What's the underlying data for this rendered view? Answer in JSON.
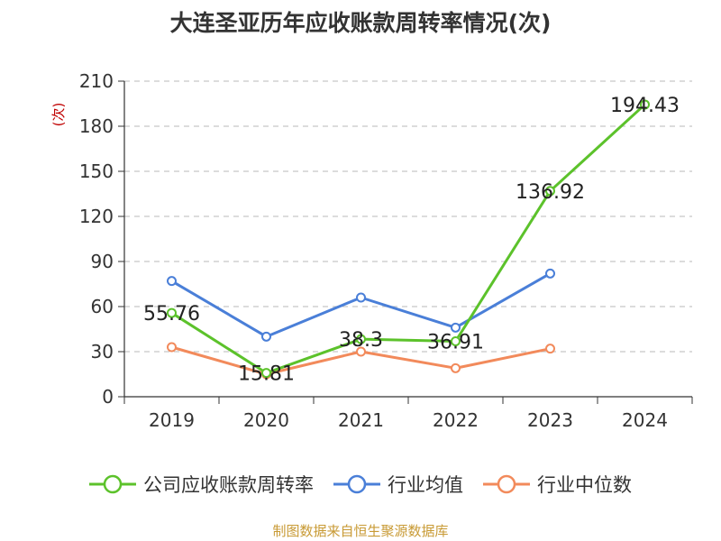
{
  "source": "制图数据来自恒生聚源数据库",
  "chart_data": {
    "type": "line",
    "title": "大连圣亚历年应收账款周转率情况(次)",
    "ylabel": "(次)",
    "xlabel": "",
    "categories": [
      "2019",
      "2020",
      "2021",
      "2022",
      "2023",
      "2024"
    ],
    "ylim": [
      0,
      210
    ],
    "yticks": [
      "0",
      "30",
      "60",
      "90",
      "120",
      "150",
      "180",
      "210"
    ],
    "grid": true,
    "legend_position": "bottom",
    "series": [
      {
        "name": "公司应收账款周转率",
        "color": "#5cc22b",
        "values": [
          55.76,
          15.81,
          38.3,
          36.91,
          136.92,
          194.43
        ],
        "labels": [
          "55.76",
          "15.81",
          "38.3",
          "36.91",
          "136.92",
          "194.43"
        ]
      },
      {
        "name": "行业均值",
        "color": "#4a7fd8",
        "values": [
          77,
          40,
          66,
          46,
          82,
          null
        ]
      },
      {
        "name": "行业中位数",
        "color": "#f28a5b",
        "values": [
          33,
          15,
          30,
          19,
          32,
          null
        ]
      }
    ]
  }
}
